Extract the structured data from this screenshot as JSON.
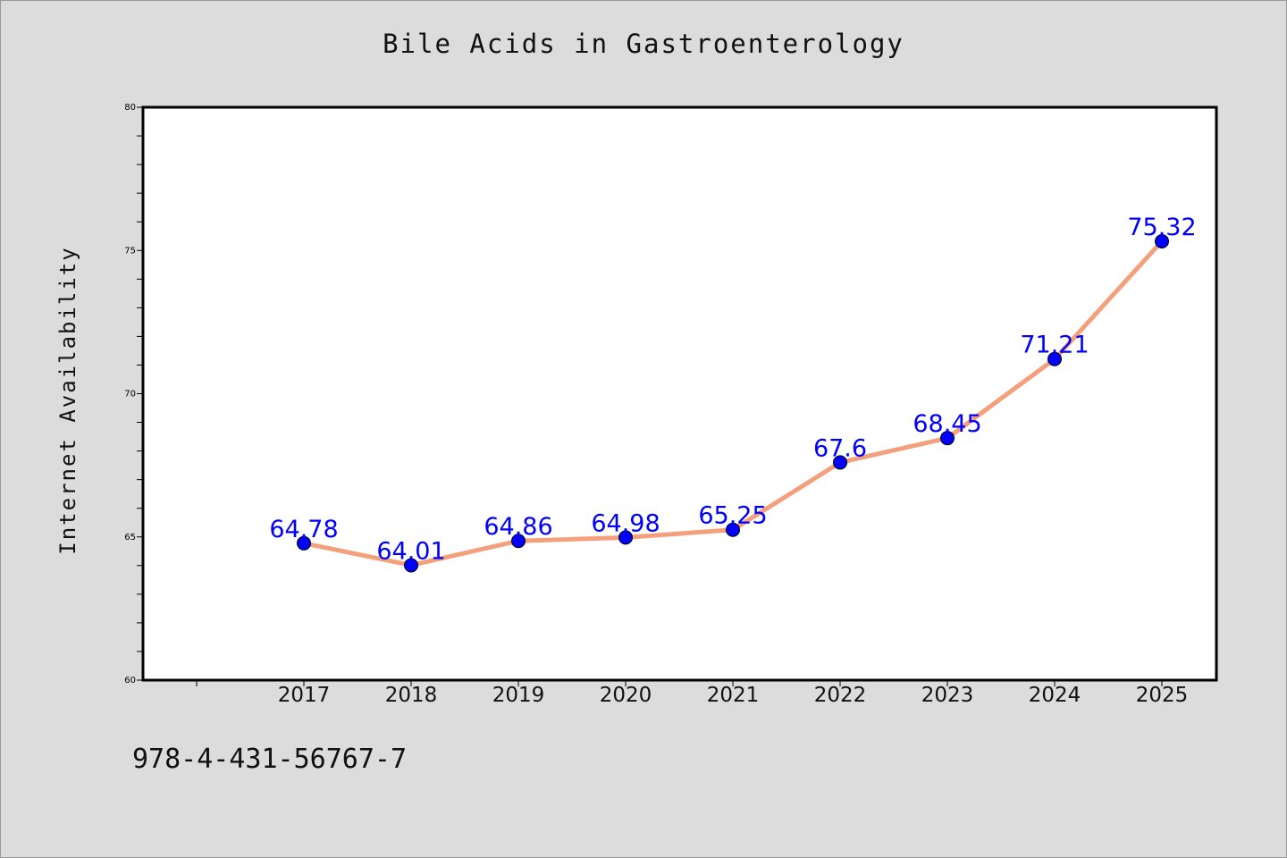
{
  "page": {
    "background_color": "#dcdcdc",
    "footnote": "978-4-431-56767-7"
  },
  "chart_data": {
    "type": "line",
    "title": "Bile Acids in Gastroenterology",
    "xlabel": "",
    "ylabel": "Internet Availability",
    "categories": [
      "2017",
      "2018",
      "2019",
      "2020",
      "2021",
      "2022",
      "2023",
      "2024",
      "2025"
    ],
    "series": [
      {
        "values": [
          64.78,
          64.01,
          64.86,
          64.98,
          65.25,
          67.6,
          68.45,
          71.21,
          75.32
        ],
        "labels": [
          "64.78",
          "64.01",
          "64.86",
          "64.98",
          "65.25",
          "67.6",
          "68.45",
          "71.21",
          "75.32"
        ],
        "line_color": "#f4a07c",
        "marker_color": "#0000ff",
        "label_color": "#0000ff"
      }
    ],
    "ylim": [
      60,
      80
    ],
    "yticks": [
      "60",
      "65",
      "70",
      "75",
      "80"
    ],
    "grid": false,
    "legend": "none"
  }
}
